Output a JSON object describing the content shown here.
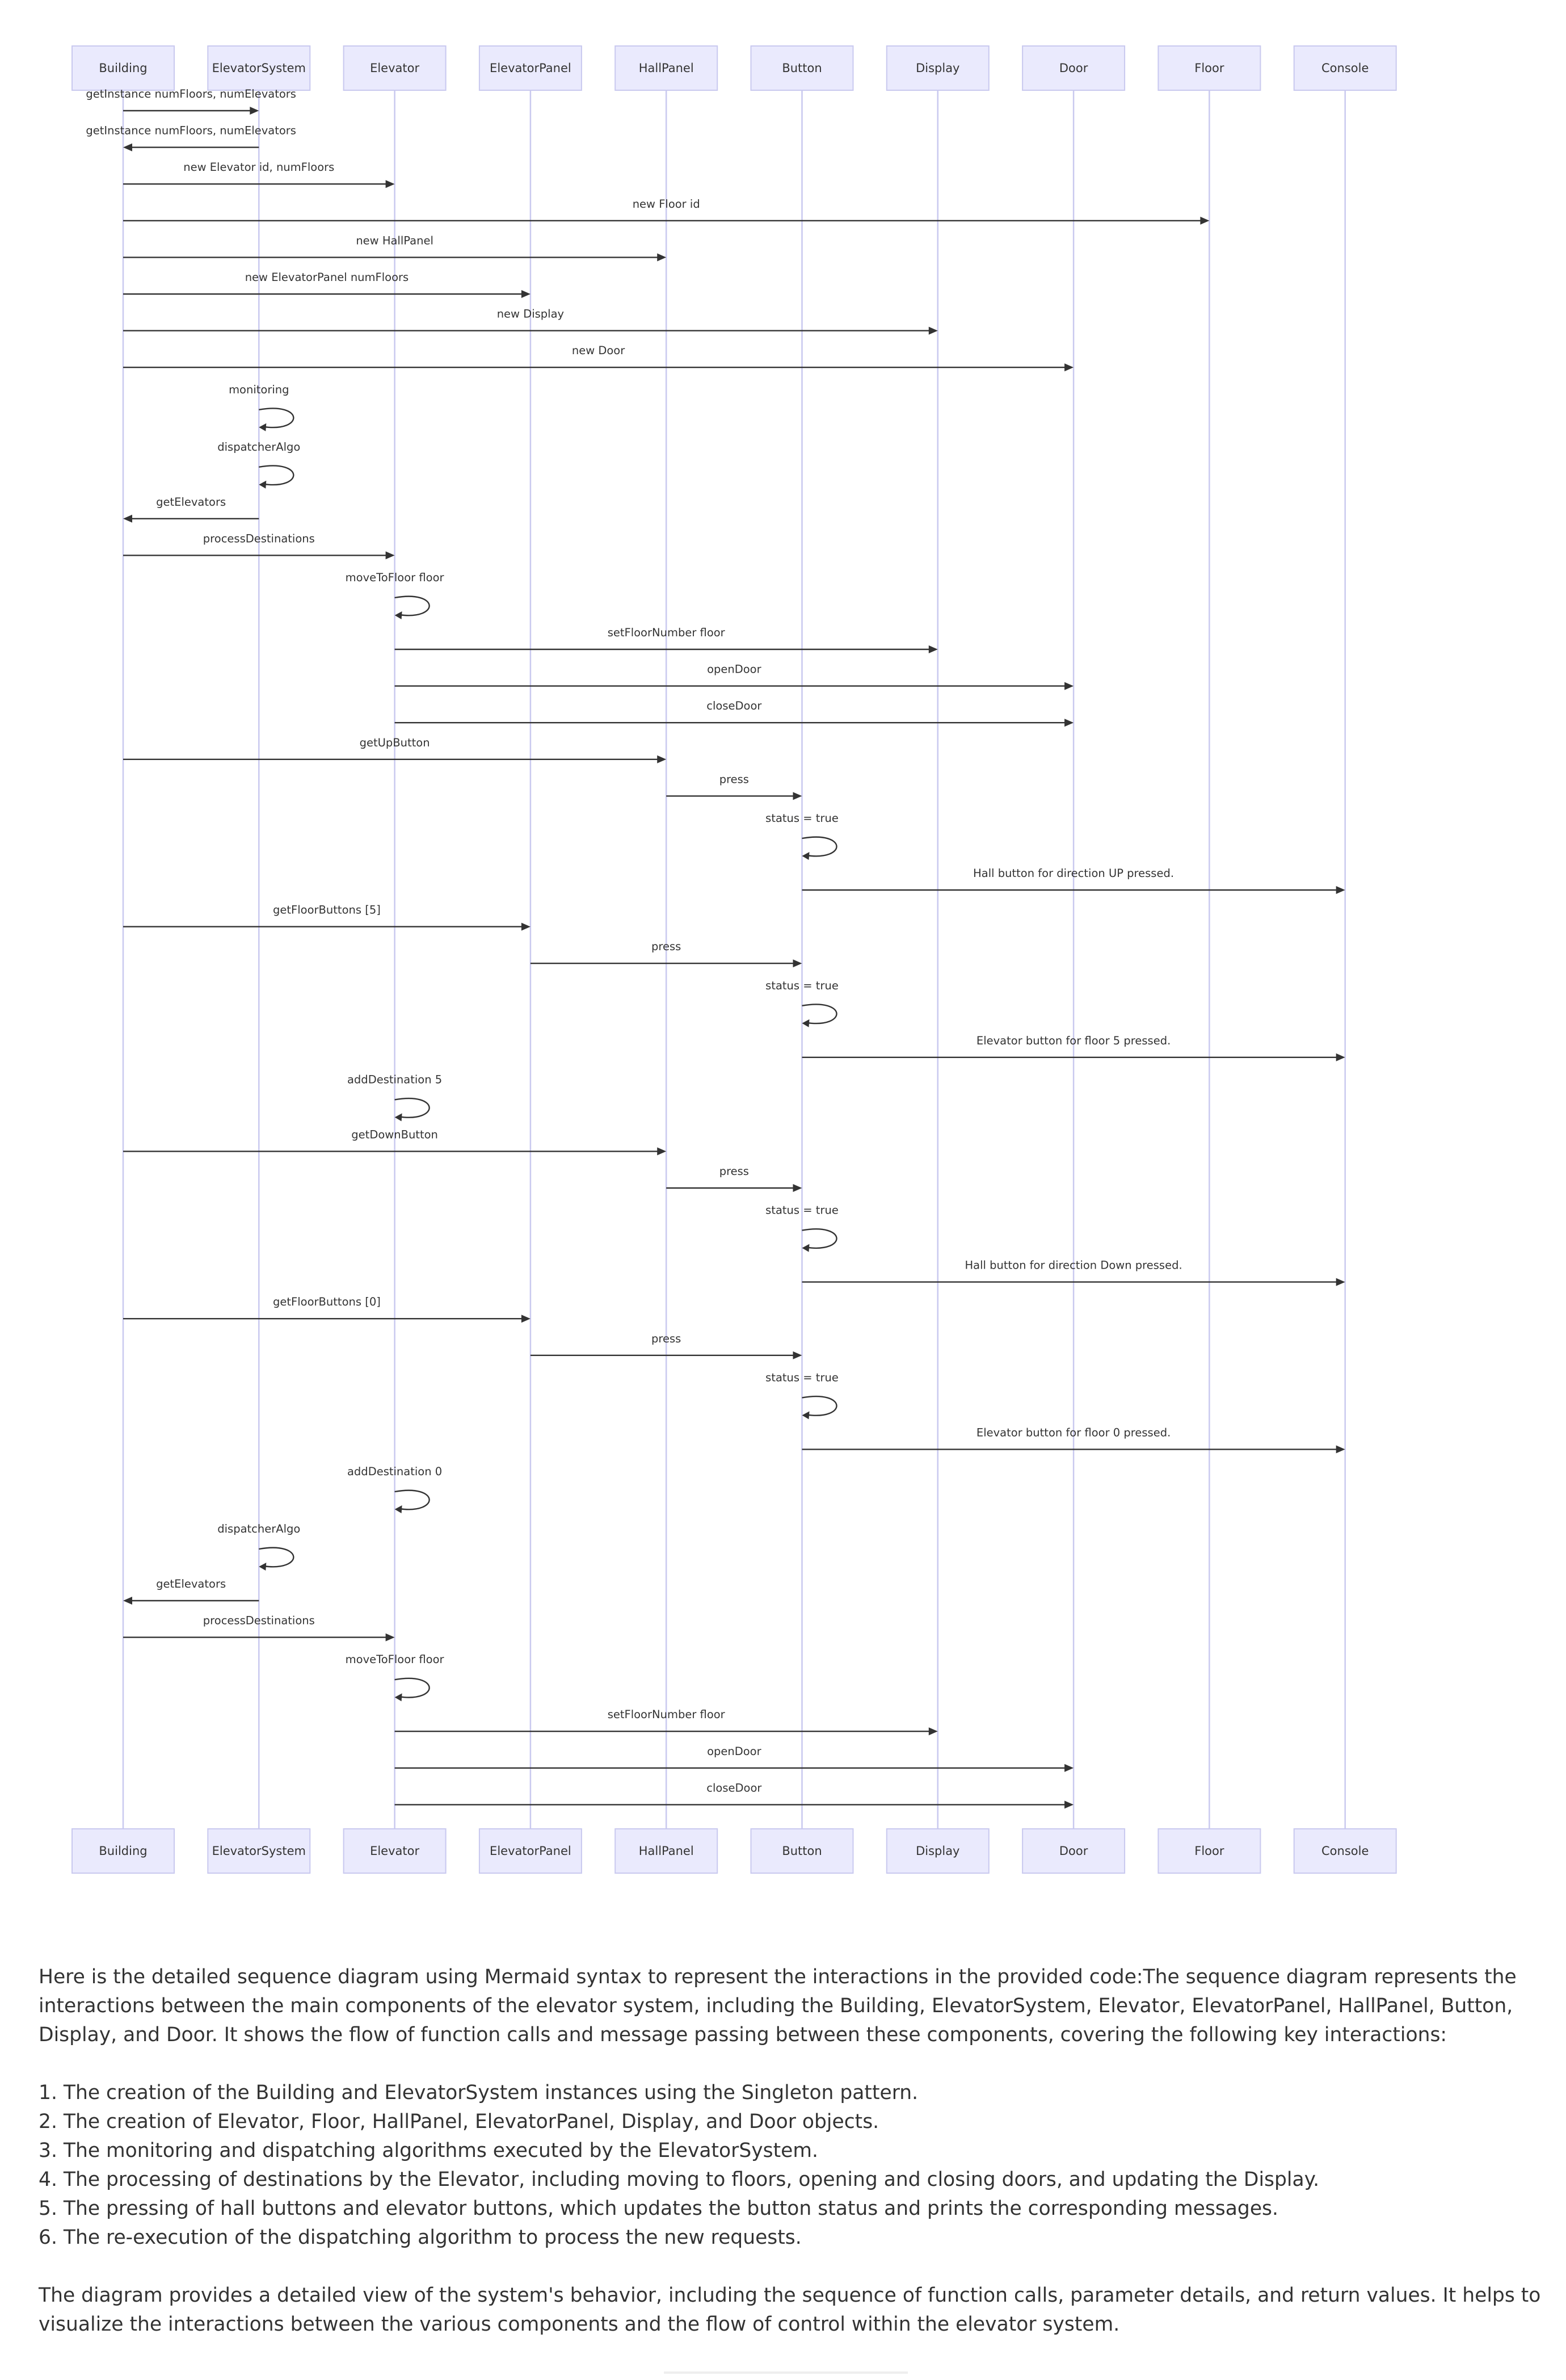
{
  "actors": [
    {
      "id": "building",
      "label": "Building"
    },
    {
      "id": "elevator-system",
      "label": "ElevatorSystem"
    },
    {
      "id": "elevator",
      "label": "Elevator"
    },
    {
      "id": "elevator-panel",
      "label": "ElevatorPanel"
    },
    {
      "id": "hall-panel",
      "label": "HallPanel"
    },
    {
      "id": "button",
      "label": "Button"
    },
    {
      "id": "display",
      "label": "Display"
    },
    {
      "id": "door",
      "label": "Door"
    },
    {
      "id": "floor",
      "label": "Floor"
    },
    {
      "id": "console",
      "label": "Console"
    }
  ],
  "messages": [
    {
      "from": 0,
      "to": 1,
      "label": "getInstance numFloors, numElevators"
    },
    {
      "from": 1,
      "to": 0,
      "label": "getInstance numFloors, numElevators"
    },
    {
      "from": 0,
      "to": 2,
      "label": "new Elevator id, numFloors"
    },
    {
      "from": 0,
      "to": 8,
      "label": "new Floor id"
    },
    {
      "from": 0,
      "to": 4,
      "label": "new HallPanel"
    },
    {
      "from": 0,
      "to": 3,
      "label": "new ElevatorPanel numFloors"
    },
    {
      "from": 0,
      "to": 6,
      "label": "new Display"
    },
    {
      "from": 0,
      "to": 7,
      "label": "new Door"
    },
    {
      "from": 1,
      "to": 1,
      "label": "monitoring"
    },
    {
      "from": 1,
      "to": 1,
      "label": "dispatcherAlgo"
    },
    {
      "from": 1,
      "to": 0,
      "label": "getElevators"
    },
    {
      "from": 0,
      "to": 2,
      "label": "processDestinations"
    },
    {
      "from": 2,
      "to": 2,
      "label": "moveToFloor floor"
    },
    {
      "from": 2,
      "to": 6,
      "label": "setFloorNumber floor"
    },
    {
      "from": 2,
      "to": 7,
      "label": "openDoor"
    },
    {
      "from": 2,
      "to": 7,
      "label": "closeDoor"
    },
    {
      "from": 0,
      "to": 4,
      "label": "getUpButton"
    },
    {
      "from": 4,
      "to": 5,
      "label": "press"
    },
    {
      "from": 5,
      "to": 5,
      "label": "status = true"
    },
    {
      "from": 5,
      "to": 9,
      "label": "Hall button for direction UP pressed."
    },
    {
      "from": 0,
      "to": 3,
      "label": "getFloorButtons [5]"
    },
    {
      "from": 3,
      "to": 5,
      "label": "press"
    },
    {
      "from": 5,
      "to": 5,
      "label": "status = true"
    },
    {
      "from": 5,
      "to": 9,
      "label": "Elevator button for floor 5 pressed."
    },
    {
      "from": 2,
      "to": 2,
      "label": "addDestination 5"
    },
    {
      "from": 0,
      "to": 4,
      "label": "getDownButton"
    },
    {
      "from": 4,
      "to": 5,
      "label": "press"
    },
    {
      "from": 5,
      "to": 5,
      "label": "status = true"
    },
    {
      "from": 5,
      "to": 9,
      "label": "Hall button for direction Down pressed."
    },
    {
      "from": 0,
      "to": 3,
      "label": "getFloorButtons [0]"
    },
    {
      "from": 3,
      "to": 5,
      "label": "press"
    },
    {
      "from": 5,
      "to": 5,
      "label": "status = true"
    },
    {
      "from": 5,
      "to": 9,
      "label": "Elevator button for floor 0 pressed."
    },
    {
      "from": 2,
      "to": 2,
      "label": "addDestination 0"
    },
    {
      "from": 1,
      "to": 1,
      "label": "dispatcherAlgo"
    },
    {
      "from": 1,
      "to": 0,
      "label": "getElevators"
    },
    {
      "from": 0,
      "to": 2,
      "label": "processDestinations"
    },
    {
      "from": 2,
      "to": 2,
      "label": "moveToFloor floor"
    },
    {
      "from": 2,
      "to": 6,
      "label": "setFloorNumber floor"
    },
    {
      "from": 2,
      "to": 7,
      "label": "openDoor"
    },
    {
      "from": 2,
      "to": 7,
      "label": "closeDoor"
    }
  ],
  "explanation": {
    "intro": "Here is the detailed sequence diagram using Mermaid syntax to represent the interactions in the provided code:The sequence diagram represents the interactions between the main components of the elevator system, including the Building, ElevatorSystem, Elevator, ElevatorPanel, HallPanel, Button, Display, and Door. It shows the flow of function calls and message passing between these components, covering the following key interactions:",
    "items": [
      "1. The creation of the Building and ElevatorSystem instances using the Singleton pattern.",
      "2. The creation of Elevator, Floor, HallPanel, ElevatorPanel, Display, and Door objects.",
      "3. The monitoring and dispatching algorithms executed by the ElevatorSystem.",
      "4. The processing of destinations by the Elevator, including moving to floors, opening and closing doors, and updating the Display.",
      "5. The pressing of hall buttons and elevator buttons, which updates the button status and prints the corresponding messages.",
      "6. The re-execution of the dispatching algorithm to process the new requests."
    ],
    "conclusion": "The diagram provides a detailed view of the system's behavior, including the sequence of function calls, parameter details, and return values. It helps to visualize the interactions between the various components and the flow of control within the elevator system."
  }
}
